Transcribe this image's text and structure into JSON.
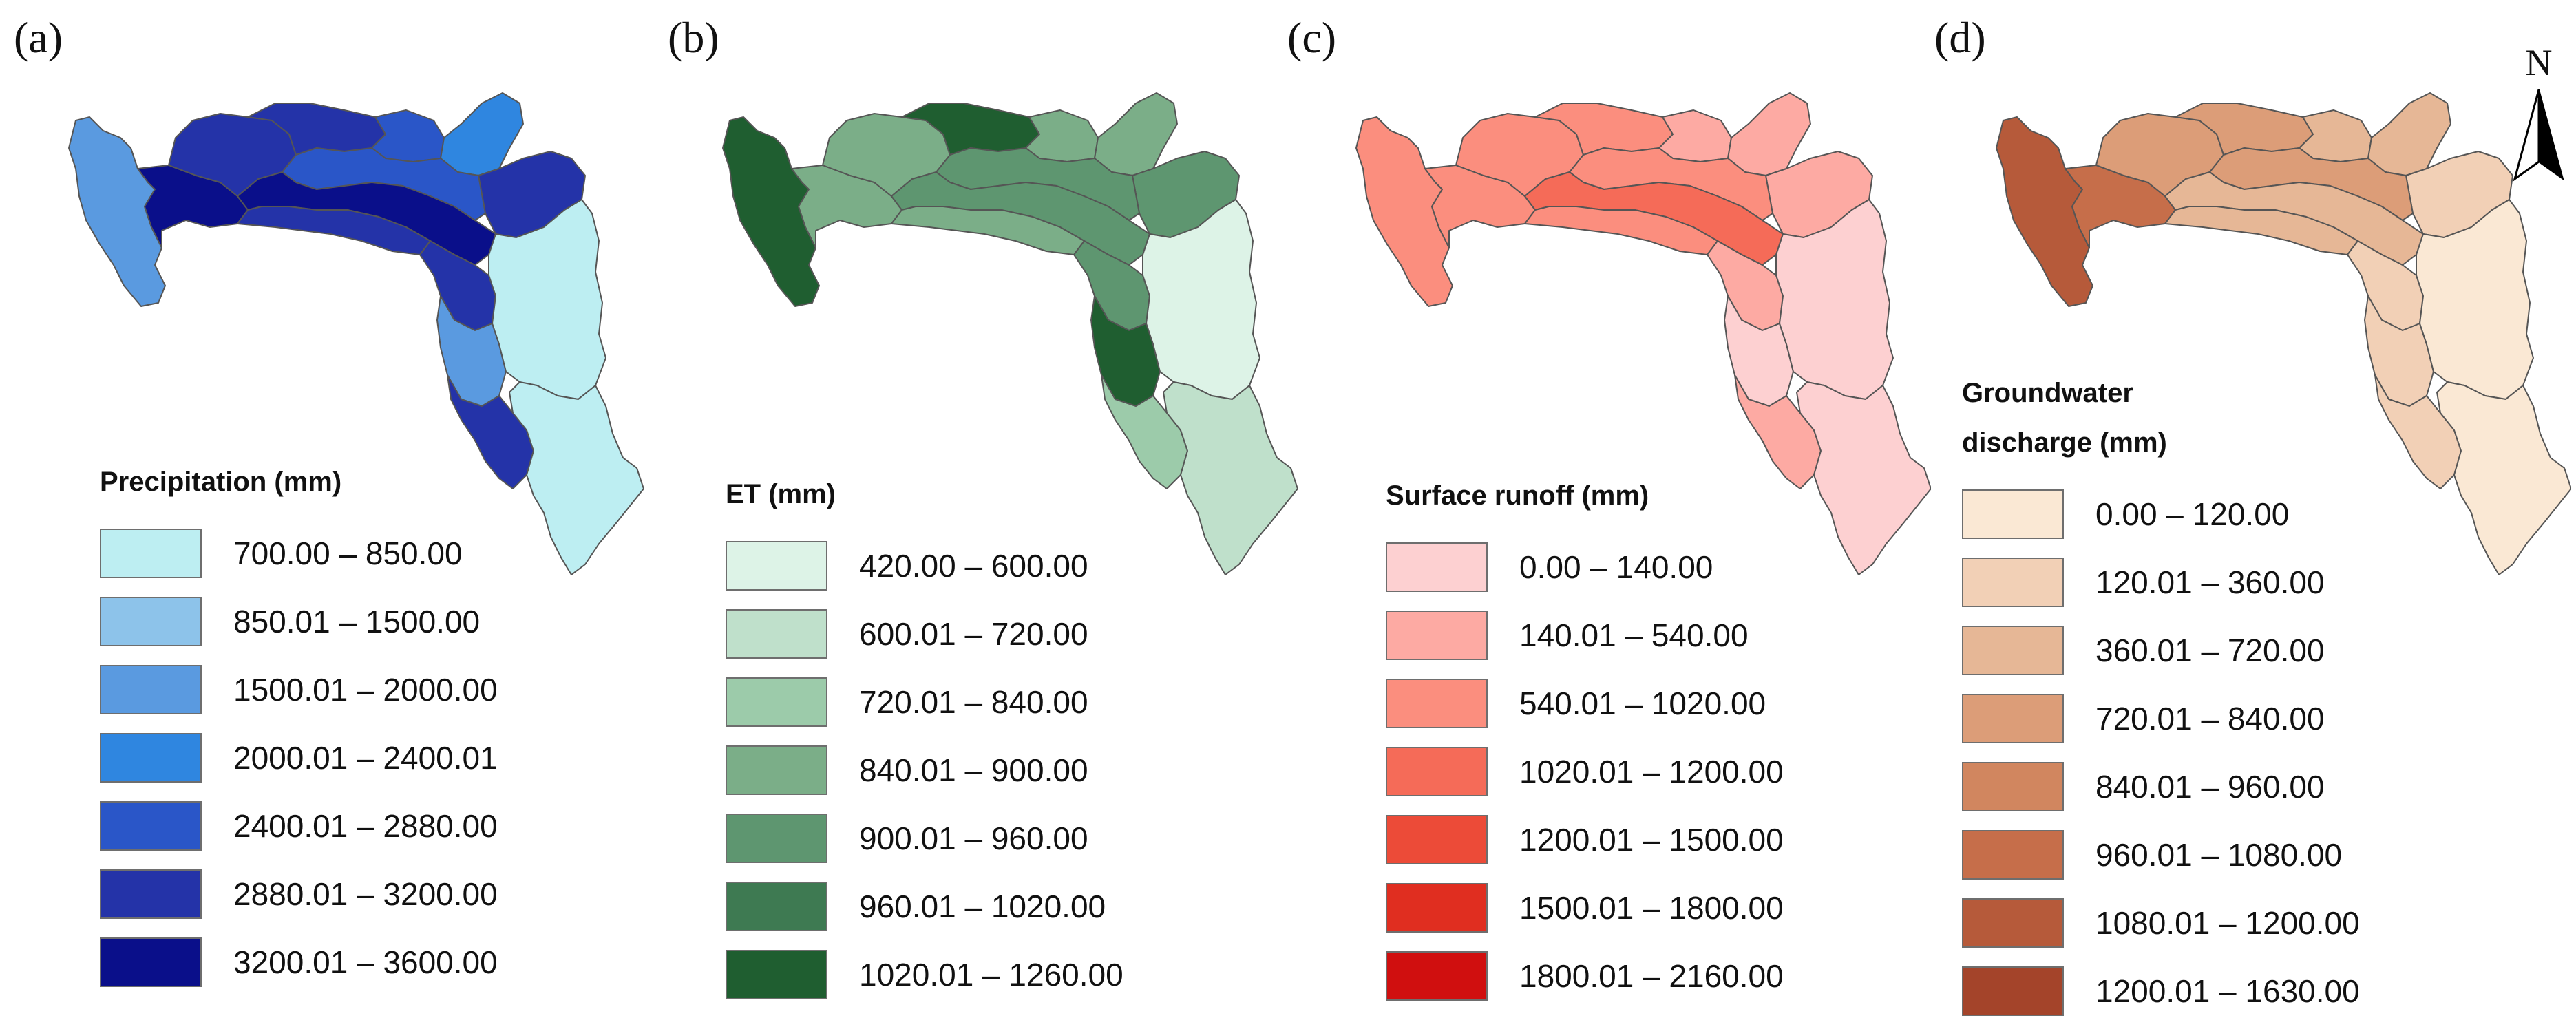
{
  "north_arrow": {
    "letter": "N",
    "icon": "north-arrow-icon"
  },
  "panels": [
    {
      "label": "(a)",
      "legend_title": "Precipitation (mm)",
      "region_border": "#555555",
      "classes": [
        {
          "range": "700.00 – 850.00",
          "color": "#bdeef2"
        },
        {
          "range": "850.01 – 1500.00",
          "color": "#8dc3ea"
        },
        {
          "range": "1500.01 – 2000.00",
          "color": "#5a9ae0"
        },
        {
          "range": "2000.01 – 2400.01",
          "color": "#2f86e0"
        },
        {
          "range": "2400.01 – 2880.00",
          "color": "#2a56c8"
        },
        {
          "range": "2880.01 – 3200.00",
          "color": "#2433a8"
        },
        {
          "range": "3200.01 – 3600.00",
          "color": "#0a0f8a"
        }
      ]
    },
    {
      "label": "(b)",
      "legend_title": "ET (mm)",
      "region_border": "#555555",
      "classes": [
        {
          "range": "420.00 – 600.00",
          "color": "#ddf3e7"
        },
        {
          "range": "600.01 – 720.00",
          "color": "#bfe0cb"
        },
        {
          "range": "720.01 – 840.00",
          "color": "#9ccbaa"
        },
        {
          "range": "840.01 – 900.00",
          "color": "#7bae88"
        },
        {
          "range": "900.01 – 960.00",
          "color": "#5e9670"
        },
        {
          "range": "960.01 – 1020.00",
          "color": "#3e7a52"
        },
        {
          "range": "1020.01 – 1260.00",
          "color": "#1f5e30"
        }
      ]
    },
    {
      "label": "(c)",
      "legend_title": "Surface runoff (mm)",
      "region_border": "#555555",
      "classes": [
        {
          "range": "0.00 – 140.00",
          "color": "#fdd0d1"
        },
        {
          "range": "140.01 – 540.00",
          "color": "#fdaaa3"
        },
        {
          "range": "540.01 – 1020.00",
          "color": "#fb8e7e"
        },
        {
          "range": "1020.01 – 1200.00",
          "color": "#f56b58"
        },
        {
          "range": "1200.01 – 1500.00",
          "color": "#ec4b38"
        },
        {
          "range": "1500.01 – 1800.00",
          "color": "#e02e20"
        },
        {
          "range": "1800.01 – 2160.00",
          "color": "#d00f0f"
        }
      ]
    },
    {
      "label": "(d)",
      "legend_title": "Groundwater\ndischarge (mm)",
      "region_border": "#555555",
      "classes": [
        {
          "range": "0.00 – 120.00",
          "color": "#fae8d4"
        },
        {
          "range": "120.01 – 360.00",
          "color": "#f2d0b6"
        },
        {
          "range": "360.01 – 720.00",
          "color": "#e6b796"
        },
        {
          "range": "720.01 – 840.00",
          "color": "#dc9d78"
        },
        {
          "range": "840.01 – 960.00",
          "color": "#d1865f"
        },
        {
          "range": "960.01 – 1080.00",
          "color": "#c66e4a"
        },
        {
          "range": "1080.01 – 1200.00",
          "color": "#b65a3a"
        },
        {
          "range": "1200.01 – 1630.00",
          "color": "#a4442a"
        }
      ]
    }
  ]
}
